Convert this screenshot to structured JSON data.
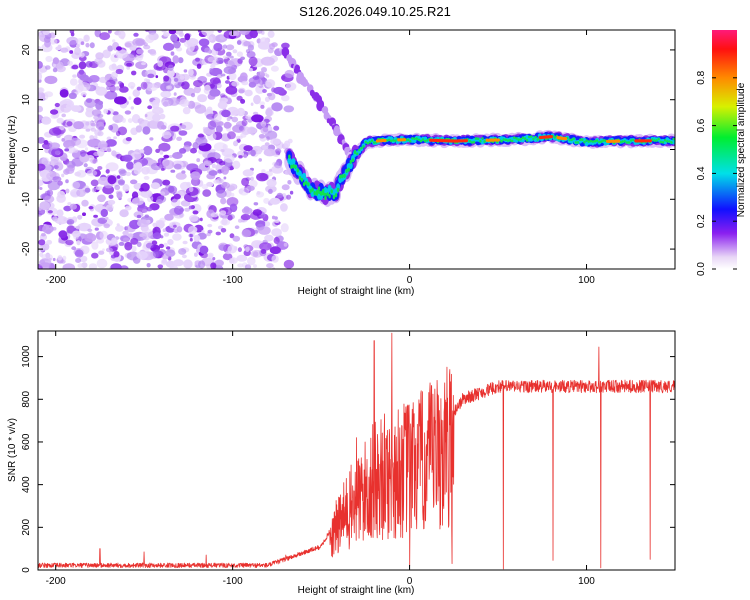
{
  "title": "S126.2026.049.10.25.R21",
  "chart_data": [
    {
      "type": "heatmap",
      "name": "spectrogram",
      "xlabel": "Height of straight line (km)",
      "ylabel": "Frequency (Hz)",
      "xlim": [
        -210,
        150
      ],
      "ylim": [
        -24,
        24
      ],
      "xticks": [
        -200,
        -100,
        0,
        100
      ],
      "yticks": [
        -20,
        -10,
        0,
        10,
        20
      ],
      "noise_region_x": [
        -210,
        -72
      ],
      "ridge": [
        {
          "x": -68,
          "y": -2
        },
        {
          "x": -62,
          "y": -5
        },
        {
          "x": -55,
          "y": -8
        },
        {
          "x": -48,
          "y": -9
        },
        {
          "x": -42,
          "y": -8.5
        },
        {
          "x": -36,
          "y": -4
        },
        {
          "x": -30,
          "y": -1
        },
        {
          "x": -25,
          "y": 1.5
        },
        {
          "x": -15,
          "y": 1.8
        },
        {
          "x": 0,
          "y": 2
        },
        {
          "x": 25,
          "y": 1.7
        },
        {
          "x": 60,
          "y": 2
        },
        {
          "x": 80,
          "y": 2.6
        },
        {
          "x": 100,
          "y": 1.5
        },
        {
          "x": 120,
          "y": 1.7
        },
        {
          "x": 150,
          "y": 1.8
        }
      ],
      "ghost_branch": [
        {
          "x": -72,
          "y": 20
        },
        {
          "x": -62,
          "y": 15
        },
        {
          "x": -50,
          "y": 9
        },
        {
          "x": -40,
          "y": 3
        },
        {
          "x": -33,
          "y": -1
        }
      ],
      "colorbar": {
        "label": "Normalized spectral amplitude",
        "ticks": [
          0.0,
          0.2,
          0.4,
          0.6,
          0.8
        ],
        "range": [
          0,
          1
        ]
      }
    },
    {
      "type": "line",
      "name": "snr",
      "xlabel": "Height of straight line (km)",
      "ylabel": "SNR (10 * v/v)",
      "xlim": [
        -210,
        150
      ],
      "ylim": [
        0,
        1120
      ],
      "xticks": [
        -200,
        -100,
        0,
        100
      ],
      "yticks": [
        0,
        200,
        400,
        600,
        800,
        1000
      ],
      "color": "#e8312e",
      "envelope": [
        {
          "x": -210,
          "y": 22
        },
        {
          "x": -80,
          "y": 22
        },
        {
          "x": -50,
          "y": 110
        },
        {
          "x": -35,
          "y": 330
        },
        {
          "x": -20,
          "y": 500
        },
        {
          "x": -5,
          "y": 560
        },
        {
          "x": 10,
          "y": 620
        },
        {
          "x": 20,
          "y": 680
        },
        {
          "x": 30,
          "y": 800
        },
        {
          "x": 50,
          "y": 860
        },
        {
          "x": 150,
          "y": 860
        }
      ],
      "spikes_up": [
        {
          "x": -175,
          "y": 100
        },
        {
          "x": -150,
          "y": 85
        },
        {
          "x": -115,
          "y": 70
        },
        {
          "x": -70,
          "y": 70
        },
        {
          "x": -30,
          "y": 620
        },
        {
          "x": -20,
          "y": 1075
        },
        {
          "x": -10,
          "y": 1110
        },
        {
          "x": 107,
          "y": 1045
        }
      ],
      "dropouts": [
        {
          "x": 0,
          "y": 20
        },
        {
          "x": 24,
          "y": 30
        },
        {
          "x": 53,
          "y": 5
        },
        {
          "x": 81,
          "y": 45
        },
        {
          "x": 108,
          "y": 10
        },
        {
          "x": 136,
          "y": 50
        }
      ]
    }
  ]
}
